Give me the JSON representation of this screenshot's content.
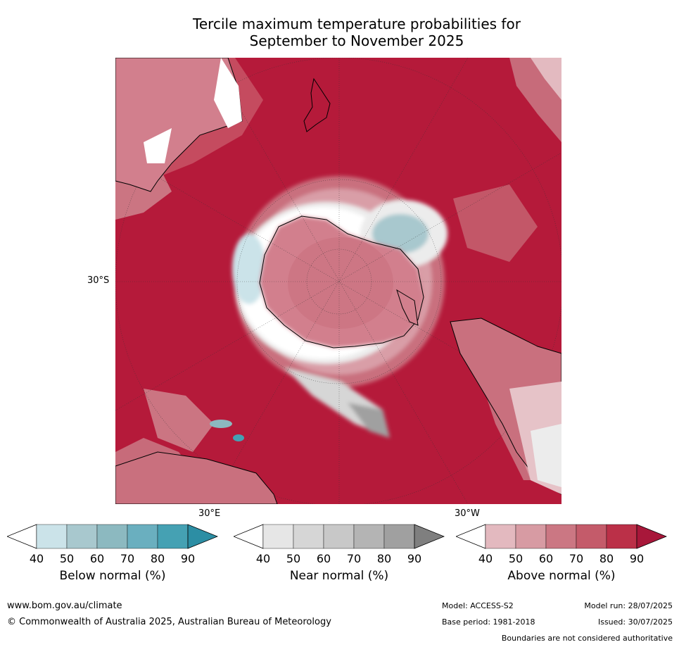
{
  "title_line1": "Tercile maximum temperature probabilities for",
  "title_line2": "September to November 2025",
  "map": {
    "projection": "south-polar-stereographic",
    "lat_label": "30°S",
    "lon_label_left": "30°E",
    "lon_label_right": "30°W",
    "background_color": "#b51a3a"
  },
  "colorbars": [
    {
      "label": "Below normal (%)",
      "ticks": [
        "40",
        "50",
        "60",
        "70",
        "80",
        "90"
      ],
      "colors": [
        "#ffffff",
        "#cbe3e9",
        "#a8c8ce",
        "#8cb9c0",
        "#6aafbf",
        "#45a1b3",
        "#2c8ea4"
      ]
    },
    {
      "label": "Near normal (%)",
      "ticks": [
        "40",
        "50",
        "60",
        "70",
        "80",
        "90"
      ],
      "colors": [
        "#ffffff",
        "#e6e6e6",
        "#d6d6d6",
        "#c8c8c8",
        "#b4b4b4",
        "#a0a0a0",
        "#7f7f7f"
      ]
    },
    {
      "label": "Above normal (%)",
      "ticks": [
        "40",
        "50",
        "60",
        "70",
        "80",
        "90"
      ],
      "colors": [
        "#ffffff",
        "#e3b9bf",
        "#d79ba3",
        "#cb7783",
        "#c45b6a",
        "#bb3048",
        "#a8173a"
      ]
    }
  ],
  "footer": {
    "website": "www.bom.gov.au/climate",
    "copyright": "© Commonwealth of Australia 2025, Australian Bureau of Meteorology",
    "model": "Model: ACCESS-S2",
    "model_run": "Model run: 28/07/2025",
    "base_period": "Base period: 1981-2018",
    "issued": "Issued: 30/07/2025",
    "disclaimer": "Boundaries are not considered authoritative"
  }
}
